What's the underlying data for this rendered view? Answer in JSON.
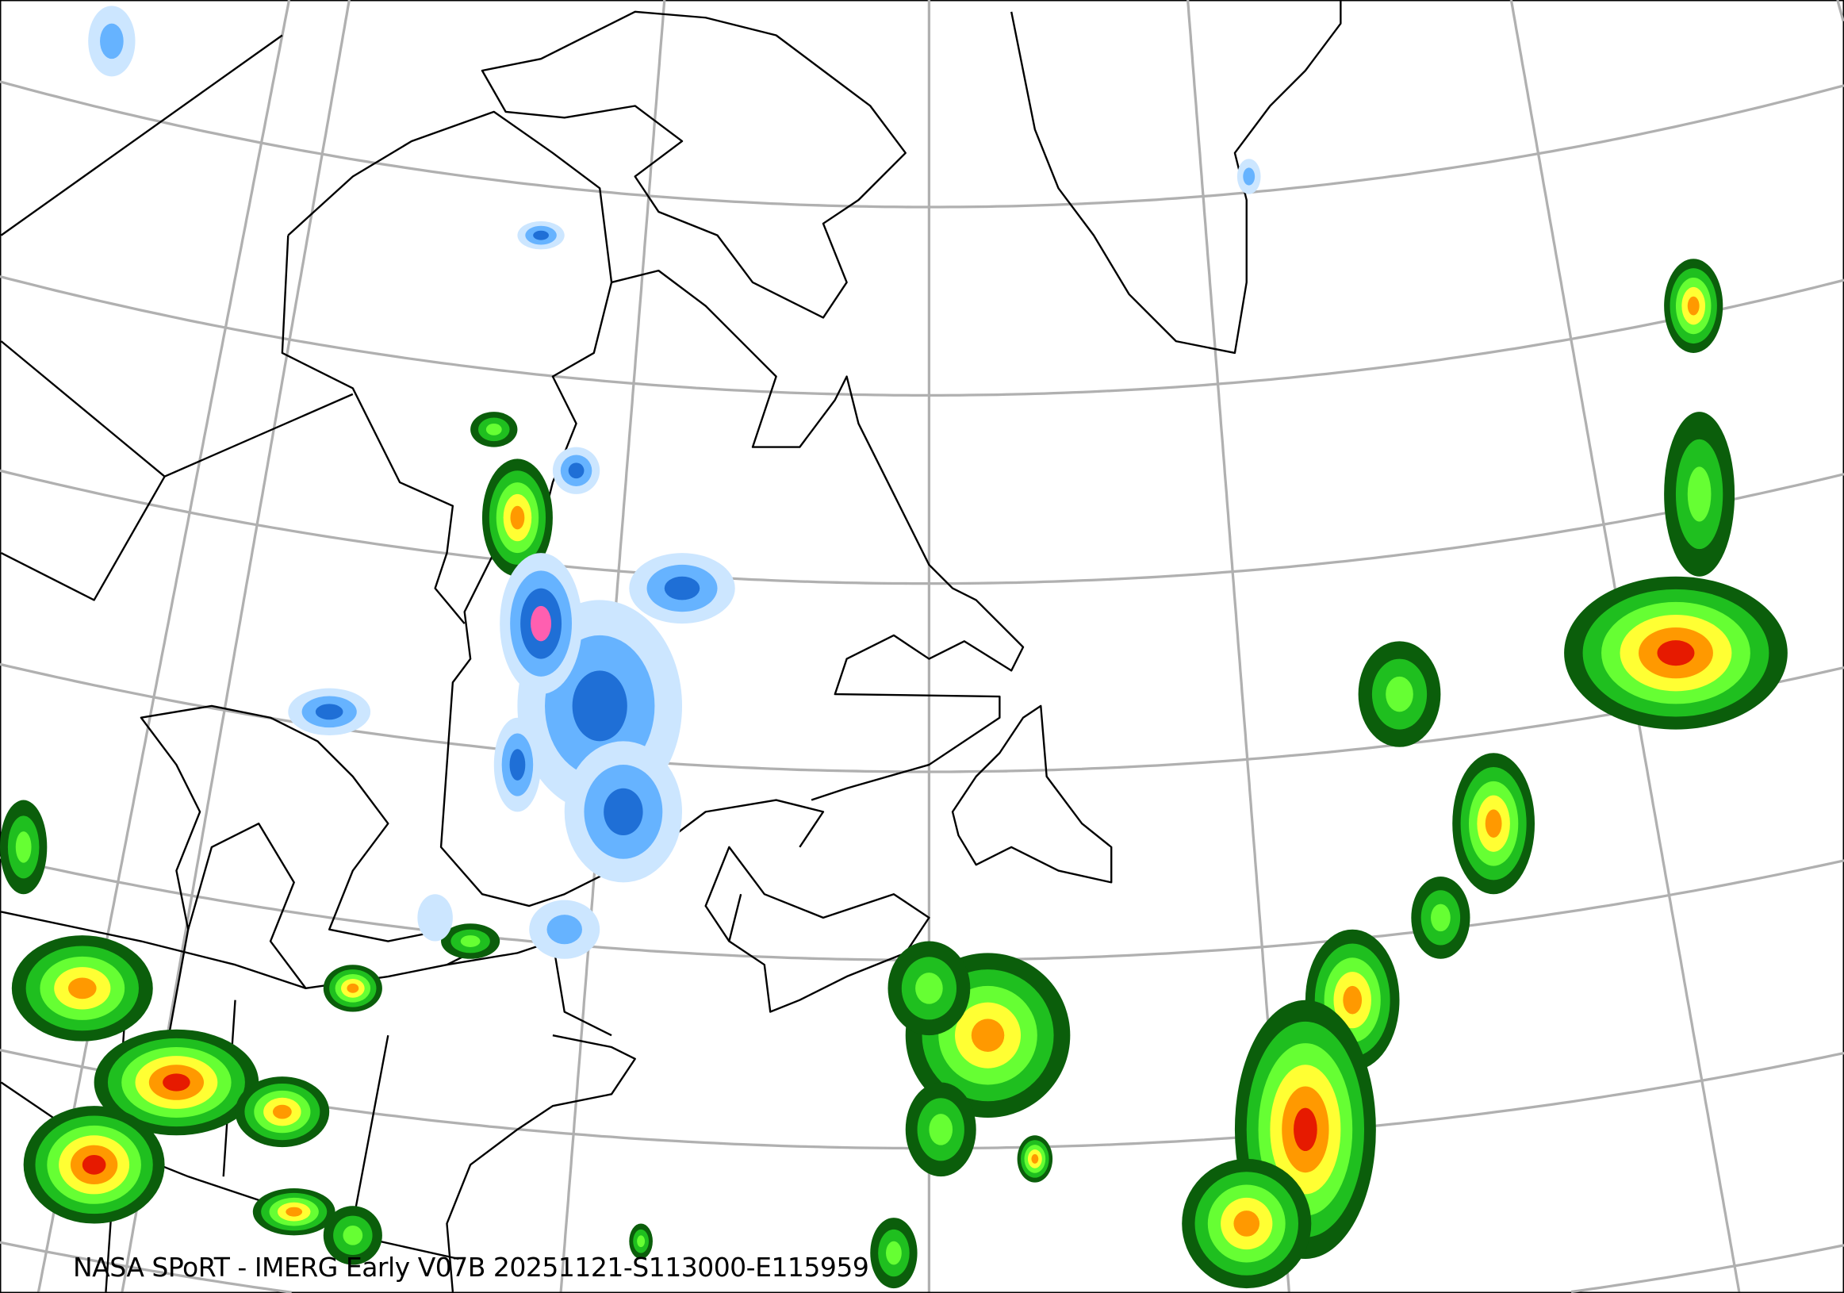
{
  "caption": "NASA SPoRT - IMERG Early V07B 20251121-S113000-E115959",
  "colors": {
    "graticule": "#b0b0b0",
    "coastline": "#000000",
    "snow_light": "#cce6ff",
    "snow_mid": "#66b3ff",
    "snow_heavy": "#1f6fd6",
    "snow_extreme": "#ff5fb0",
    "rain_dark_green": "#0b5e0b",
    "rain_green": "#1fbf1f",
    "rain_light_green": "#66ff33",
    "rain_yellow": "#ffff33",
    "rain_orange": "#ff9900",
    "rain_red": "#e61a00"
  }
}
